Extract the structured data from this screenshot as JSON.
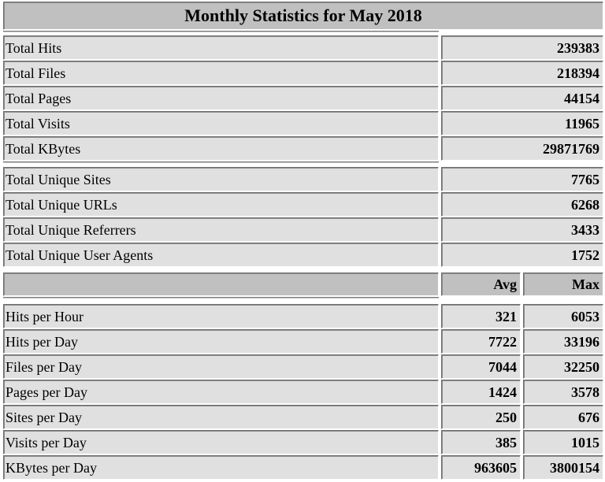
{
  "title": "Monthly Statistics for May 2018",
  "totals": [
    {
      "label": "Total Hits",
      "value": "239383"
    },
    {
      "label": "Total Files",
      "value": "218394"
    },
    {
      "label": "Total Pages",
      "value": "44154"
    },
    {
      "label": "Total Visits",
      "value": "11965"
    },
    {
      "label": "Total KBytes",
      "value": "29871769"
    }
  ],
  "uniques": [
    {
      "label": "Total Unique Sites",
      "value": "7765"
    },
    {
      "label": "Total Unique URLs",
      "value": "6268"
    },
    {
      "label": "Total Unique Referrers",
      "value": "3433"
    },
    {
      "label": "Total Unique User Agents",
      "value": "1752"
    }
  ],
  "rates_header": {
    "avg": "Avg",
    "max": "Max"
  },
  "rates": [
    {
      "label": "Hits per Hour",
      "avg": "321",
      "max": "6053"
    },
    {
      "label": "Hits per Day",
      "avg": "7722",
      "max": "33196"
    },
    {
      "label": "Files per Day",
      "avg": "7044",
      "max": "32250"
    },
    {
      "label": "Pages per Day",
      "avg": "1424",
      "max": "3578"
    },
    {
      "label": "Sites per Day",
      "avg": "250",
      "max": "676"
    },
    {
      "label": "Visits per Day",
      "avg": "385",
      "max": "1015"
    },
    {
      "label": "KBytes per Day",
      "avg": "963605",
      "max": "3800154"
    }
  ],
  "colors": {
    "cell_bg": "#e0e0e0",
    "header_bg": "#c0c0c0"
  }
}
